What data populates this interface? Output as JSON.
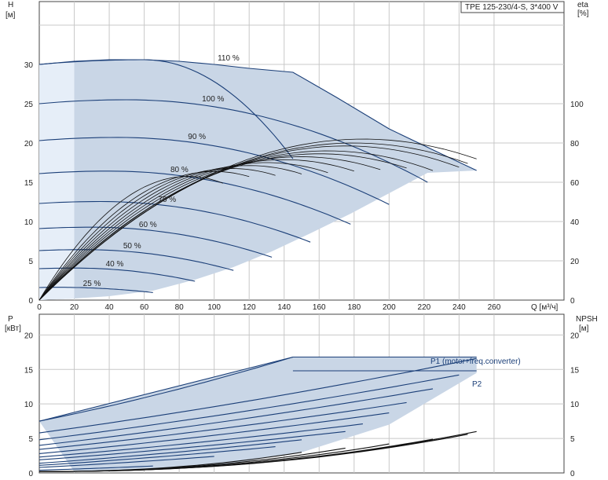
{
  "title": "TPE 125-230/4-S, 3*400 V",
  "colors": {
    "region": "#c9d6e6",
    "region_light": "#e6eef8",
    "curve": "#1b3f78",
    "grid": "#c8c8c8"
  },
  "chart_data": [
    {
      "type": "line",
      "name": "head-efficiency",
      "title": "TPE 125-230/4-S, 3*400 V",
      "xlabel": "Q [м³/ч]",
      "ylabel_text": "H",
      "ylabel_unit": "[м]",
      "y2label_text": "eta",
      "y2label_unit": "[%]",
      "xlim": [
        0,
        300
      ],
      "ylim": [
        0,
        38
      ],
      "y2lim": [
        0,
        152
      ],
      "grid": true,
      "x_ticks": [
        0,
        20,
        40,
        60,
        80,
        100,
        120,
        140,
        160,
        180,
        200,
        220,
        240,
        260
      ],
      "y_ticks": [
        0,
        5,
        10,
        15,
        20,
        25,
        30
      ],
      "y2_ticks": [
        0,
        20,
        40,
        60,
        80,
        100
      ],
      "speed_curves": [
        {
          "label": "110 %",
          "q_max": 145,
          "h0": 30.0,
          "peak_q": 60,
          "label_q": 102,
          "label_h": 30.5
        },
        {
          "label": "100 %",
          "q_max": 222,
          "h0": 25.0,
          "peak_q": 50,
          "label_q": 93,
          "label_h": 25.3
        },
        {
          "label": "90 %",
          "q_max": 200,
          "h0": 20.3,
          "peak_q": 45,
          "label_q": 85,
          "label_h": 20.5
        },
        {
          "label": "80 %",
          "q_max": 178,
          "h0": 16.1,
          "peak_q": 40,
          "label_q": 75,
          "label_h": 16.3
        },
        {
          "label": "70 %",
          "q_max": 155,
          "h0": 12.3,
          "peak_q": 35,
          "label_q": 68,
          "label_h": 12.5
        },
        {
          "label": "60 %",
          "q_max": 133,
          "h0": 9.1,
          "peak_q": 30,
          "label_q": 57,
          "label_h": 9.3
        },
        {
          "label": "50 %",
          "q_max": 111,
          "h0": 6.3,
          "peak_q": 25,
          "label_q": 48,
          "label_h": 6.6
        },
        {
          "label": "40 %",
          "q_max": 89,
          "h0": 4.0,
          "peak_q": 20,
          "label_q": 38,
          "label_h": 4.3
        },
        {
          "label": "25 %",
          "q_max": 65,
          "h0": 1.6,
          "peak_q": 10,
          "label_q": 25,
          "label_h": 1.8
        }
      ],
      "max_curve": [
        [
          0,
          30.0
        ],
        [
          20,
          30.4
        ],
        [
          40,
          30.6
        ],
        [
          60,
          30.6
        ],
        [
          80,
          30.4
        ],
        [
          100,
          30.0
        ],
        [
          120,
          29.5
        ],
        [
          145,
          29.0
        ],
        [
          170,
          25.8
        ],
        [
          200,
          21.8
        ],
        [
          230,
          18.6
        ],
        [
          250,
          16.5
        ]
      ],
      "min_curve": [
        [
          0,
          0
        ],
        [
          20,
          0.2
        ],
        [
          40,
          0.5
        ],
        [
          65,
          1.2
        ],
        [
          89,
          2.6
        ],
        [
          111,
          4.2
        ],
        [
          133,
          6.2
        ],
        [
          155,
          8.5
        ],
        [
          178,
          11.0
        ],
        [
          200,
          13.6
        ],
        [
          222,
          16.2
        ],
        [
          250,
          16.5
        ]
      ],
      "eta_curves": [
        {
          "q_max": 250,
          "peak_q": 185,
          "peak_eta": 82.0
        },
        {
          "q_max": 245,
          "peak_q": 180,
          "peak_eta": 80.0
        },
        {
          "q_max": 240,
          "peak_q": 175,
          "peak_eta": 78.5
        },
        {
          "q_max": 225,
          "peak_q": 165,
          "peak_eta": 76.0
        },
        {
          "q_max": 210,
          "peak_q": 160,
          "peak_eta": 74.5
        },
        {
          "q_max": 195,
          "peak_q": 150,
          "peak_eta": 73.0
        },
        {
          "q_max": 180,
          "peak_q": 140,
          "peak_eta": 71.5
        },
        {
          "q_max": 165,
          "peak_q": 130,
          "peak_eta": 70.0
        },
        {
          "q_max": 150,
          "peak_q": 120,
          "peak_eta": 68.5
        },
        {
          "q_max": 135,
          "peak_q": 110,
          "peak_eta": 67.0
        },
        {
          "q_max": 120,
          "peak_q": 100,
          "peak_eta": 65.5
        },
        {
          "q_max": 105,
          "peak_q": 85,
          "peak_eta": 63.0
        }
      ]
    },
    {
      "type": "line",
      "name": "power-npsh",
      "xlim": [
        0,
        300
      ],
      "ylim": [
        0,
        23
      ],
      "y2lim": [
        0,
        23
      ],
      "grid": true,
      "ylabel_text": "P",
      "ylabel_unit": "[кВт]",
      "y2label_text": "NPSH",
      "y2label_unit": "[м]",
      "y_ticks": [
        0,
        5,
        10,
        15,
        20
      ],
      "y2_ticks": [
        0,
        5,
        10,
        15,
        20
      ],
      "series_labels": {
        "p1": "P1 (motor+freq.converter)",
        "p2": "P2"
      },
      "p1_curves": [
        {
          "q_max": 145,
          "p0": 7.5,
          "p_end": 16.8
        },
        {
          "q_max": 250,
          "p0": 5.8,
          "p_end": 16.6
        },
        {
          "q_max": 240,
          "p0": 4.8,
          "p_end": 14.2
        },
        {
          "q_max": 225,
          "p0": 4.0,
          "p_end": 12.2
        },
        {
          "q_max": 210,
          "p0": 3.4,
          "p_end": 10.2
        },
        {
          "q_max": 200,
          "p0": 2.8,
          "p_end": 8.7
        },
        {
          "q_max": 185,
          "p0": 2.3,
          "p_end": 7.1
        },
        {
          "q_max": 175,
          "p0": 1.9,
          "p_end": 6.0
        },
        {
          "q_max": 150,
          "p0": 1.4,
          "p_end": 4.8
        },
        {
          "q_max": 135,
          "p0": 1.1,
          "p_end": 3.8
        },
        {
          "q_max": 100,
          "p0": 0.8,
          "p_end": 2.4
        },
        {
          "q_max": 65,
          "p0": 0.4,
          "p_end": 1.0
        }
      ],
      "p1_max": [
        [
          0,
          7.5
        ],
        [
          145,
          16.8
        ],
        [
          250,
          16.8
        ]
      ],
      "p2_curve": [
        [
          145,
          14.8
        ],
        [
          250,
          14.8
        ]
      ],
      "region_bottom": [
        [
          20,
          0.2
        ],
        [
          100,
          1.0
        ],
        [
          150,
          3.0
        ],
        [
          200,
          7.0
        ],
        [
          250,
          14.5
        ]
      ],
      "npsh_curves": [
        {
          "q_max": 250,
          "end": 6.0
        },
        {
          "q_max": 245,
          "end": 5.6
        },
        {
          "q_max": 225,
          "end": 4.9
        },
        {
          "q_max": 200,
          "end": 4.2
        },
        {
          "q_max": 175,
          "end": 3.6
        },
        {
          "q_max": 150,
          "end": 3.0
        }
      ]
    }
  ]
}
